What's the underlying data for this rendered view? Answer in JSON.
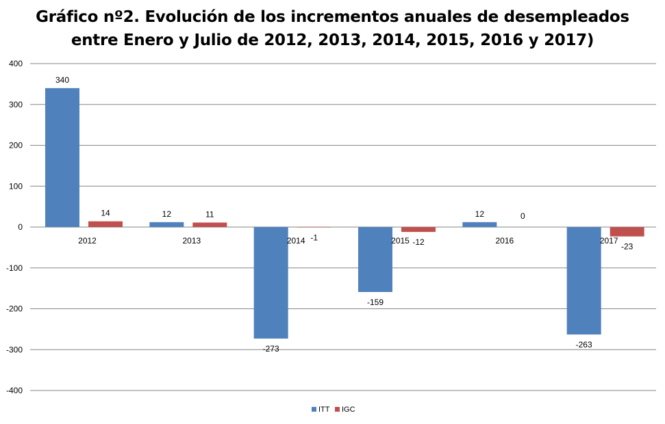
{
  "chart_data": {
    "type": "bar",
    "title_line1": "Gráfico nº2. Evolución de los incrementos anuales de desempleados",
    "title_line2": "entre Enero y Julio de 2012, 2013, 2014, 2015, 2016 y 2017)",
    "xlabel": "",
    "ylabel": "",
    "categories": [
      "2012",
      "2013",
      "2014",
      "2015",
      "2016",
      "2017"
    ],
    "series": [
      {
        "name": "ITT",
        "color": "#4F81BD",
        "values": [
          340,
          12,
          -273,
          -159,
          12,
          -263
        ]
      },
      {
        "name": "IGC",
        "color": "#C0504D",
        "values": [
          14,
          11,
          -1,
          -12,
          0,
          -23
        ]
      }
    ],
    "ylim": [
      -400,
      400
    ],
    "yticks": [
      400,
      300,
      200,
      100,
      0,
      -100,
      -200,
      -300,
      -400
    ],
    "grid": true,
    "legend_position": "bottom"
  }
}
